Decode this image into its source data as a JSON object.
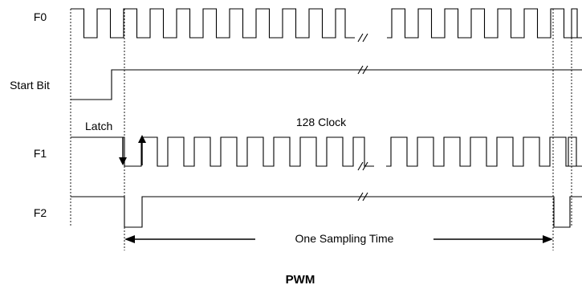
{
  "signals": [
    {
      "name": "F0"
    },
    {
      "name": "Start Bit"
    },
    {
      "name": "F1"
    },
    {
      "name": "F2"
    }
  ],
  "annotations": {
    "latch": "Latch",
    "clock_count": "128 Clock",
    "sampling": "One Sampling Time"
  },
  "caption": "PWM"
}
